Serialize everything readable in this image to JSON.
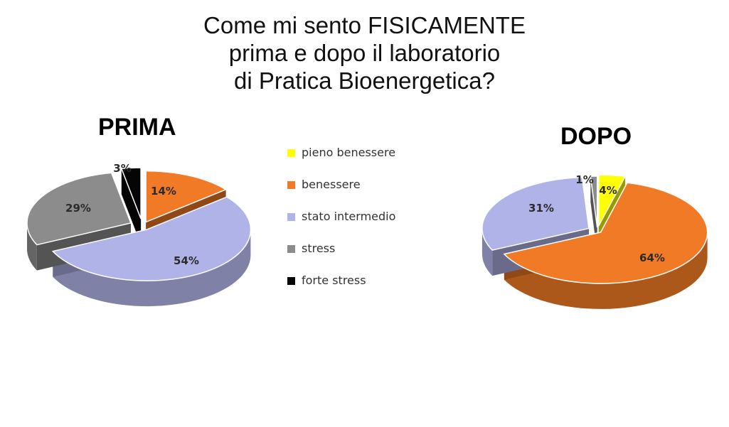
{
  "title_lines": [
    "Come mi sento FISICAMENTE",
    "prima e dopo il laboratorio",
    "di Pratica Bioenergetica?"
  ],
  "legend": [
    {
      "label": "pieno benessere",
      "color": "#ffff00"
    },
    {
      "label": "benessere",
      "color": "#f07a25"
    },
    {
      "label": "stato intermedio",
      "color": "#b0b3e8"
    },
    {
      "label": "stress",
      "color": "#8c8c8c"
    },
    {
      "label": "forte stress",
      "color": "#050505"
    }
  ],
  "chart_data": [
    {
      "type": "pie",
      "title": "PRIMA",
      "categories": [
        "pieno benessere",
        "benessere",
        "stato intermedio",
        "stress",
        "forte stress"
      ],
      "values": [
        0,
        14,
        54,
        29,
        3
      ],
      "labels": [
        "",
        "14%",
        "54%",
        "29%",
        "3%"
      ]
    },
    {
      "type": "pie",
      "title": "DOPO",
      "categories": [
        "pieno benessere",
        "benessere",
        "stato intermedio",
        "stress",
        "forte stress"
      ],
      "values": [
        4,
        64,
        31,
        1,
        0
      ],
      "labels": [
        "4%",
        "64%",
        "31%",
        "1%",
        ""
      ]
    }
  ]
}
